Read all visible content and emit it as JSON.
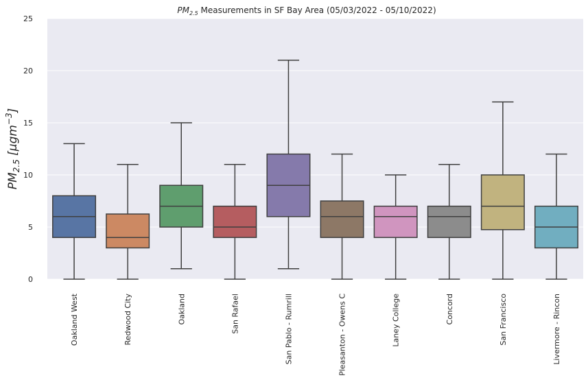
{
  "chart_data": {
    "type": "box",
    "title_main": "PM",
    "title_sub": "2.5",
    "title_rest": " Measurements in SF Bay Area (05/03/2022 - 05/10/2022)",
    "ylabel_main": "PM",
    "ylabel_sub": "2.5",
    "ylabel_rest": " [μgm",
    "ylabel_sup": "−3",
    "ylabel_close": "]",
    "xlabel": "",
    "ylim": [
      0,
      25
    ],
    "yticks": [
      {
        "value": 0,
        "label": "0"
      },
      {
        "value": 5,
        "label": "5"
      },
      {
        "value": 10,
        "label": "10"
      },
      {
        "value": 15,
        "label": "15"
      },
      {
        "value": 20,
        "label": "20"
      },
      {
        "value": 25,
        "label": "25"
      }
    ],
    "grid": true,
    "background": "#eaeaf2",
    "series": [
      {
        "name": "Oakland West",
        "min": 0,
        "q1": 4,
        "median": 6,
        "q3": 8,
        "max": 13,
        "color": "#5875a4"
      },
      {
        "name": "Redwood City",
        "min": 0,
        "q1": 3,
        "median": 4,
        "q3": 6.25,
        "max": 11,
        "color": "#cc8963"
      },
      {
        "name": "Oakland",
        "min": 1,
        "q1": 5,
        "median": 7,
        "q3": 9,
        "max": 15,
        "color": "#5f9e6e"
      },
      {
        "name": "San Rafael",
        "min": 0,
        "q1": 4,
        "median": 5,
        "q3": 7,
        "max": 11,
        "color": "#b55d60"
      },
      {
        "name": "San Pablo - Rumrill",
        "min": 1,
        "q1": 6,
        "median": 9,
        "q3": 12,
        "max": 21,
        "color": "#857aab"
      },
      {
        "name": "Pleasanton - Owens C",
        "min": 0,
        "q1": 4,
        "median": 6,
        "q3": 7.5,
        "max": 12,
        "color": "#8d7866"
      },
      {
        "name": "Laney College",
        "min": 0,
        "q1": 4,
        "median": 6,
        "q3": 7,
        "max": 10,
        "color": "#d095bf"
      },
      {
        "name": "Concord",
        "min": 0,
        "q1": 4,
        "median": 6,
        "q3": 7,
        "max": 11,
        "color": "#8c8c8c"
      },
      {
        "name": "San Francisco",
        "min": 0,
        "q1": 4.75,
        "median": 7,
        "q3": 10,
        "max": 17,
        "color": "#c1b37f"
      },
      {
        "name": "Livermore - Rincon",
        "min": 0,
        "q1": 3,
        "median": 5,
        "q3": 7,
        "max": 12,
        "color": "#71aec0"
      }
    ]
  }
}
